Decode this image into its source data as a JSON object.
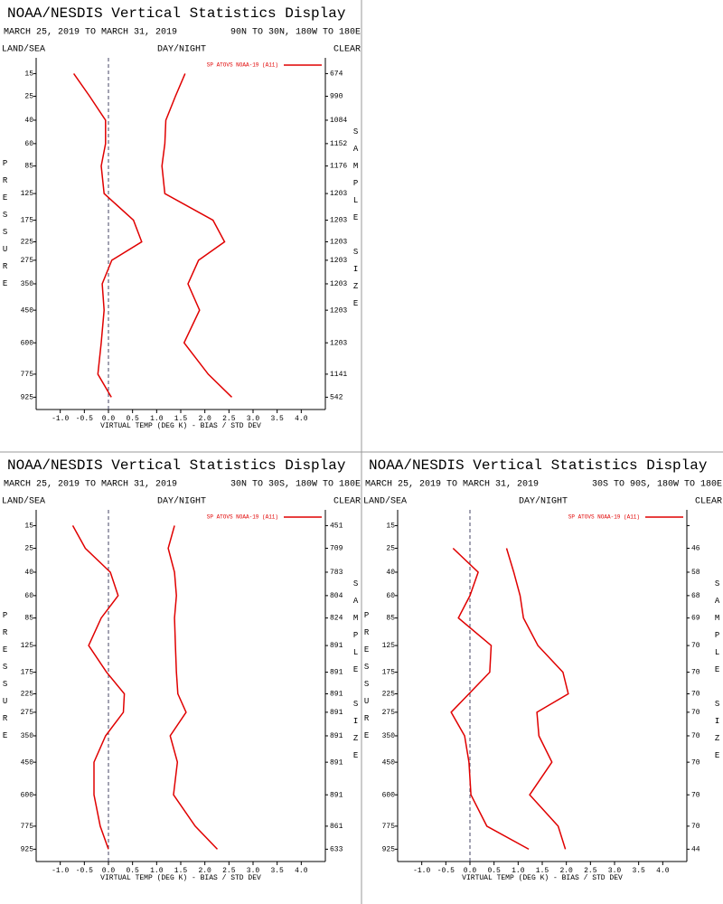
{
  "chart_data": [
    {
      "type": "line",
      "title": "NOAA/NESDIS Vertical Statistics Display",
      "subtitle": "MARCH 25, 2019 TO MARCH 31, 2019",
      "region": "90N TO 30N, 180W TO 180E",
      "left_label": "LAND/SEA",
      "center_label": "DAY/NIGHT",
      "right_label": "CLEAR",
      "xlabel": "VIRTUAL TEMP (DEG K) - BIAS / STD DEV",
      "ylabel": "PRESSURE",
      "y2label": "SAMPLE SIZE",
      "y": [
        15,
        25,
        40,
        60,
        85,
        125,
        175,
        225,
        275,
        350,
        450,
        600,
        775,
        925
      ],
      "series": [
        {
          "name": "SP ATOVS NOAA-19 (A11)",
          "color": "#e00000",
          "values": [
            -0.72,
            -0.39,
            -0.06,
            -0.06,
            -0.15,
            -0.09,
            0.52,
            0.69,
            0.07,
            -0.13,
            -0.09,
            -0.15,
            -0.22,
            0.06
          ]
        },
        {
          "color": "#e00000",
          "values": [
            1.59,
            1.39,
            1.19,
            1.17,
            1.11,
            1.17,
            2.17,
            2.41,
            1.87,
            1.65,
            1.89,
            1.57,
            2.07,
            2.56
          ]
        }
      ],
      "sample_size": [
        674,
        990,
        1084,
        1152,
        1176,
        1203,
        1203,
        1203,
        1203,
        1203,
        1203,
        1203,
        1141,
        542
      ],
      "xlim": [
        -1.5,
        4.5
      ],
      "xticks": [
        {
          "value": -1,
          "label": "-1.0"
        },
        -0.5,
        {
          "value": 0,
          "label": "0.0"
        },
        0.5,
        {
          "value": 1,
          "label": "1.0"
        },
        1.5,
        {
          "value": 2,
          "label": "2.0"
        },
        2.5,
        {
          "value": 3,
          "label": "3.0"
        },
        3.5,
        {
          "value": 4,
          "label": "4.0"
        }
      ],
      "ylim": [
        10,
        1013
      ],
      "yscale": "power",
      "yticks": [
        15,
        25,
        40,
        60,
        85,
        125,
        175,
        225,
        275,
        350,
        450,
        600,
        775,
        925
      ],
      "legend": "upper right"
    },
    {
      "type": "line",
      "title": "NOAA/NESDIS Vertical Statistics Display",
      "subtitle": "MARCH 25, 2019 TO MARCH 31, 2019",
      "region": "30N TO 30S, 180W TO 180E",
      "left_label": "LAND/SEA",
      "center_label": "DAY/NIGHT",
      "right_label": "CLEAR",
      "xlabel": "VIRTUAL TEMP (DEG K) - BIAS / STD DEV",
      "ylabel": "PRESSURE",
      "y2label": "SAMPLE SIZE",
      "y": [
        15,
        25,
        40,
        60,
        85,
        125,
        175,
        225,
        275,
        350,
        450,
        600,
        775,
        925
      ],
      "series": [
        {
          "name": "SP ATOVS NOAA-19 (A11)",
          "color": "#e00000",
          "values": [
            -0.74,
            -0.48,
            0.04,
            0.2,
            -0.15,
            -0.41,
            -0.04,
            0.33,
            0.31,
            -0.06,
            -0.3,
            -0.3,
            -0.17,
            0
          ]
        },
        {
          "color": "#e00000",
          "values": [
            1.37,
            1.24,
            1.37,
            1.41,
            1.37,
            1.39,
            1.41,
            1.44,
            1.61,
            1.28,
            1.43,
            1.35,
            1.8,
            2.26
          ]
        }
      ],
      "sample_size": [
        451,
        709,
        783,
        804,
        824,
        891,
        891,
        891,
        891,
        891,
        891,
        891,
        861,
        633
      ],
      "xlim": [
        -1.5,
        4.5
      ],
      "xticks": [
        {
          "value": -1,
          "label": "-1.0"
        },
        -0.5,
        {
          "value": 0,
          "label": "0.0"
        },
        0.5,
        {
          "value": 1,
          "label": "1.0"
        },
        1.5,
        {
          "value": 2,
          "label": "2.0"
        },
        2.5,
        {
          "value": 3,
          "label": "3.0"
        },
        3.5,
        {
          "value": 4,
          "label": "4.0"
        }
      ],
      "ylim": [
        10,
        1013
      ],
      "yscale": "power",
      "yticks": [
        15,
        25,
        40,
        60,
        85,
        125,
        175,
        225,
        275,
        350,
        450,
        600,
        775,
        925
      ],
      "legend": "upper right"
    },
    {
      "type": "line",
      "title": "NOAA/NESDIS Vertical Statistics Display",
      "subtitle": "MARCH 25, 2019 TO MARCH 31, 2019",
      "region": "30S TO 90S, 180W TO 180E",
      "left_label": "LAND/SEA",
      "center_label": "DAY/NIGHT",
      "right_label": "CLEAR",
      "xlabel": "VIRTUAL TEMP (DEG K) - BIAS / STD DEV",
      "ylabel": "PRESSURE",
      "y2label": "SAMPLE SIZE",
      "y": [
        15,
        25,
        40,
        60,
        85,
        125,
        175,
        225,
        275,
        350,
        450,
        600,
        775,
        925
      ],
      "series": [
        {
          "name": "SP ATOVS NOAA-19 (A11)",
          "color": "#e00000",
          "values": [
            null,
            -0.35,
            0.17,
            0,
            -0.24,
            0.44,
            0.41,
            -0.02,
            -0.39,
            -0.11,
            -0.02,
            0.02,
            0.35,
            1.22
          ]
        },
        {
          "color": "#e00000",
          "values": [
            null,
            0.76,
            0.91,
            1.04,
            1.11,
            1.41,
            1.93,
            2.04,
            1.39,
            1.43,
            1.7,
            1.24,
            1.83,
            1.98
          ]
        }
      ],
      "sample_size": [
        null,
        46,
        58,
        68,
        69,
        70,
        70,
        70,
        70,
        70,
        70,
        70,
        70,
        44
      ],
      "xlim": [
        -1.5,
        4.5
      ],
      "xticks": [
        {
          "value": -1,
          "label": "-1.0"
        },
        -0.5,
        {
          "value": 0,
          "label": "0.0"
        },
        0.5,
        {
          "value": 1,
          "label": "1.0"
        },
        1.5,
        {
          "value": 2,
          "label": "2.0"
        },
        2.5,
        {
          "value": 3,
          "label": "3.0"
        },
        3.5,
        {
          "value": 4,
          "label": "4.0"
        }
      ],
      "ylim": [
        10,
        1013
      ],
      "yscale": "power",
      "yticks": [
        15,
        25,
        40,
        60,
        85,
        125,
        175,
        225,
        275,
        350,
        450,
        600,
        775,
        925
      ],
      "legend": "upper right"
    }
  ]
}
